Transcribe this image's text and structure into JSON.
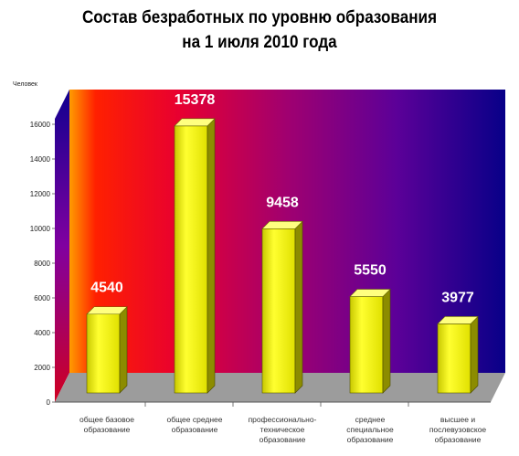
{
  "chart_data": {
    "type": "bar",
    "title": [
      "Состав безработных по уровню образования",
      "на 1 июля 2010 года"
    ],
    "ylabel": "Человек",
    "ylim": [
      0,
      16000
    ],
    "yticks": [
      "0",
      "2000",
      "4000",
      "6000",
      "8000",
      "10000",
      "12000",
      "14000",
      "16000"
    ],
    "categories": [
      [
        "общее базовое",
        "образование"
      ],
      [
        "общее среднее",
        "образование"
      ],
      [
        "профессионально-",
        "техническое",
        "образование"
      ],
      [
        "среднее",
        "специальное",
        "образование"
      ],
      [
        "высшее и",
        "послевузовское",
        "образование"
      ]
    ],
    "values": [
      4540,
      15378,
      9458,
      5550,
      3977
    ],
    "data_labels": [
      "4540",
      "15378",
      "9458",
      "5550",
      "3977"
    ],
    "grid": false,
    "legend": "none",
    "colors": {
      "bar_front": "#f0f000",
      "bar_side": "#8a8a00",
      "bar_top": "#ffff70",
      "floor": "#9a9a9a",
      "back_gradient": [
        "#ffa000",
        "#ff0000",
        "#cc0060",
        "#7a0090",
        "#4000a0",
        "#000080"
      ]
    }
  }
}
